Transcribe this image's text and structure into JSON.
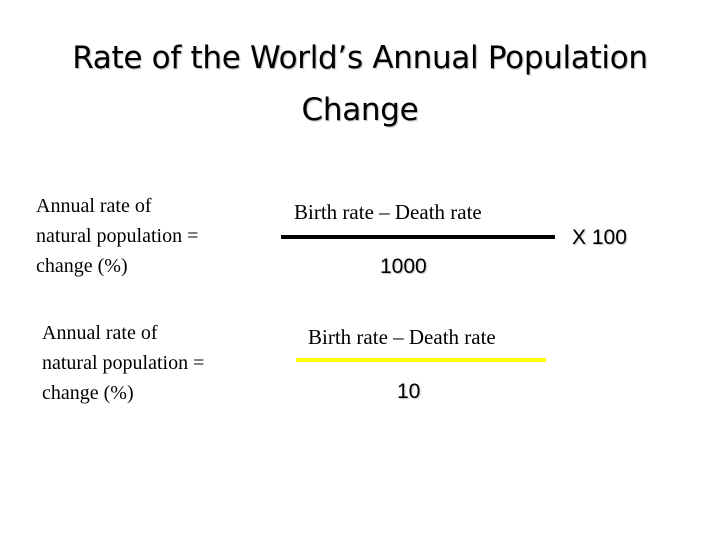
{
  "slide": {
    "title_line1": "Rate of the World’s Annual  Population",
    "title_line2": "Change",
    "formula1": {
      "lhs_line1": "Annual rate of",
      "lhs_line2": "natural population  =",
      "lhs_line3": "change (%)",
      "numerator": "Birth rate – Death rate",
      "denominator": "1000",
      "multiplier": "X 100",
      "fraction_bar_color": "#000000"
    },
    "formula2": {
      "lhs_line1": "Annual rate of",
      "lhs_line2": "natural population  =",
      "lhs_line3": "change (%)",
      "numerator": "Birth rate – Death rate",
      "denominator": "10",
      "fraction_bar_color": "#ffff00"
    }
  }
}
